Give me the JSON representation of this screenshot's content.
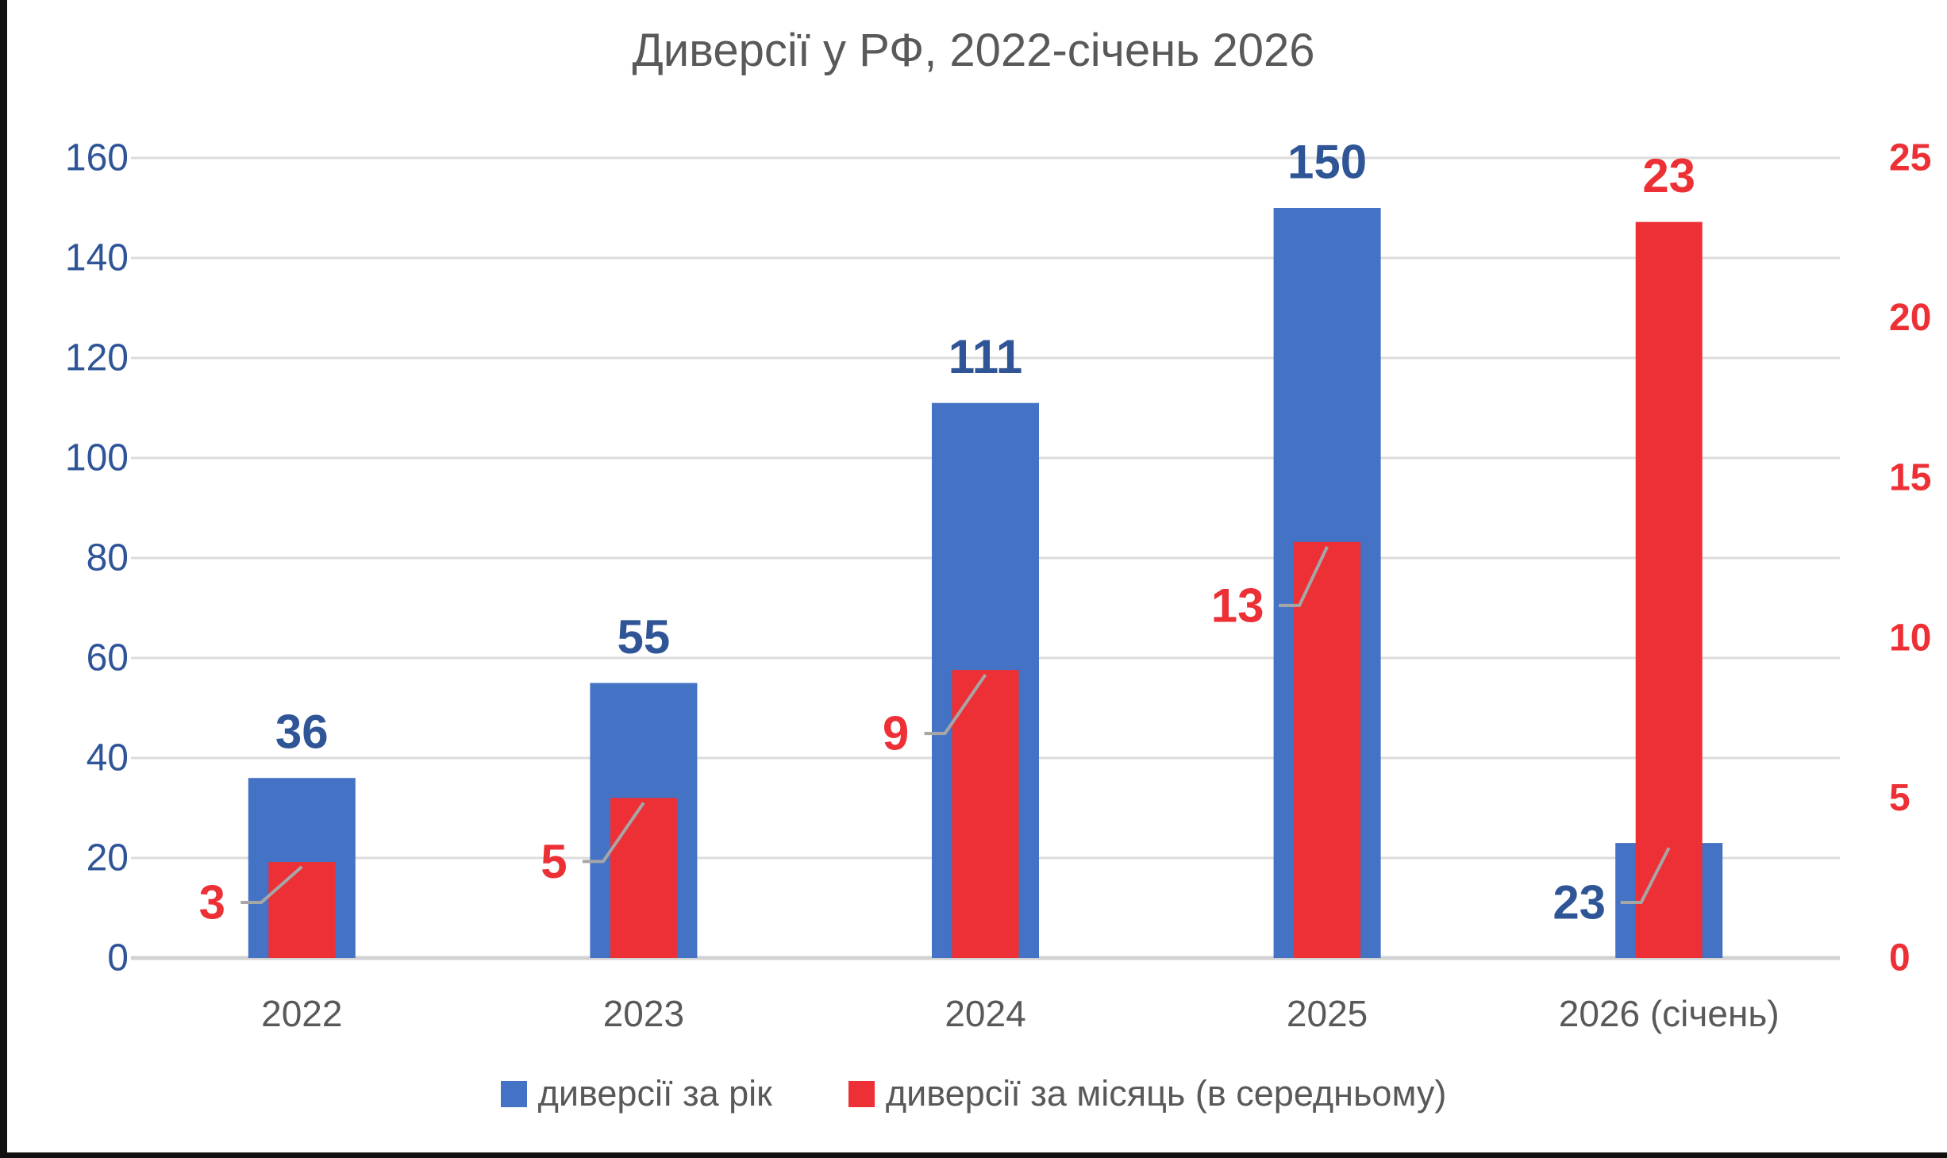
{
  "chart": {
    "title": "Диверсії у РФ, 2022-січень 2026"
  },
  "chart_data": {
    "type": "bar",
    "title": "Диверсії у РФ, 2022-січень 2026",
    "categories": [
      "2022",
      "2023",
      "2024",
      "2025",
      "2026 (січень)"
    ],
    "series": [
      {
        "name": "диверсії за рік",
        "axis": "left",
        "color": "#4472C4",
        "label_color": "#2F5597",
        "values": [
          36,
          55,
          111,
          150,
          23
        ]
      },
      {
        "name": "диверсії за місяць (в середньому)",
        "axis": "right",
        "color": "#ED3035",
        "label_color": "#ED3035",
        "values": [
          3,
          5,
          9,
          13,
          23
        ]
      }
    ],
    "left_axis": {
      "min": 0,
      "max": 160,
      "step": 20,
      "tick_labels": [
        "0",
        "20",
        "40",
        "60",
        "80",
        "100",
        "120",
        "140",
        "160"
      ],
      "color": "#2F5597"
    },
    "right_axis": {
      "min": 0,
      "max": 25,
      "step": 5,
      "tick_labels": [
        "0",
        "5",
        "10",
        "15",
        "20",
        "25"
      ],
      "color": "#ED3035"
    },
    "grid": true,
    "legend_position": "bottom",
    "colors": {
      "title_text": "#595959",
      "category_text": "#595959",
      "gridline": "#DCDCDC",
      "axis_line": "#D2D2D2",
      "leader_line": "#A6A6A6"
    }
  }
}
